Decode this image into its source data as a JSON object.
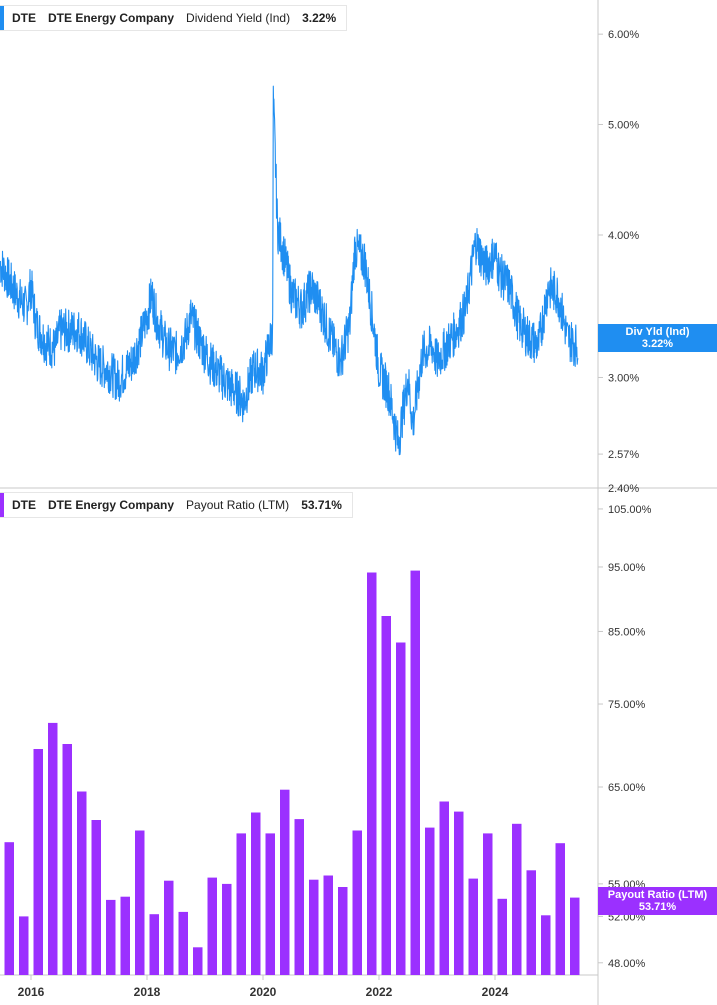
{
  "colors": {
    "yield": "#1f8ef1",
    "payout": "#9b30ff",
    "axis": "#c8c8c8",
    "text": "#333333"
  },
  "top_legend": {
    "ticker": "DTE",
    "company": "DTE Energy Company",
    "metric": "Dividend Yield (Ind)",
    "value": "3.22%"
  },
  "bottom_legend": {
    "ticker": "DTE",
    "company": "DTE Energy Company",
    "metric": "Payout Ratio (LTM)",
    "value": "53.71%"
  },
  "top_flag": {
    "line1": "Div Yld (Ind)",
    "line2": "3.22%"
  },
  "bottom_flag": {
    "line1": "Payout Ratio (LTM)",
    "line2": "53.71%"
  },
  "chart_data": [
    {
      "type": "line",
      "title": "",
      "series": [
        {
          "name": "Dividend Yield (Ind)"
        }
      ],
      "x_range": [
        "2015-06",
        "2025-07"
      ],
      "y_scale": "log",
      "ylim": [
        2.4,
        6.3
      ],
      "y_ticks": [
        "6.00%",
        "5.00%",
        "4.00%",
        "3.00%",
        "2.57%",
        "2.40%"
      ],
      "y_tick_values": [
        6.0,
        5.0,
        4.0,
        3.0,
        2.57,
        2.4
      ],
      "points": [
        [
          "2015-06",
          3.82
        ],
        [
          "2015-08",
          3.68
        ],
        [
          "2015-10",
          3.55
        ],
        [
          "2015-12",
          3.45
        ],
        [
          "2016-01",
          3.62
        ],
        [
          "2016-02",
          3.35
        ],
        [
          "2016-04",
          3.22
        ],
        [
          "2016-06",
          3.18
        ],
        [
          "2016-07",
          3.3
        ],
        [
          "2016-09",
          3.3
        ],
        [
          "2016-11",
          3.3
        ],
        [
          "2017-01",
          3.18
        ],
        [
          "2017-03",
          3.08
        ],
        [
          "2017-05",
          3.05
        ],
        [
          "2017-07",
          2.98
        ],
        [
          "2017-08",
          3.02
        ],
        [
          "2017-10",
          3.1
        ],
        [
          "2017-12",
          3.28
        ],
        [
          "2018-01",
          3.4
        ],
        [
          "2018-02",
          3.55
        ],
        [
          "2018-03",
          3.38
        ],
        [
          "2018-05",
          3.2
        ],
        [
          "2018-07",
          3.15
        ],
        [
          "2018-09",
          3.25
        ],
        [
          "2018-10",
          3.4
        ],
        [
          "2018-12",
          3.22
        ],
        [
          "2019-02",
          3.1
        ],
        [
          "2019-04",
          3.02
        ],
        [
          "2019-06",
          2.95
        ],
        [
          "2019-08",
          2.9
        ],
        [
          "2019-09",
          2.85
        ],
        [
          "2019-11",
          3.05
        ],
        [
          "2019-12",
          3.05
        ],
        [
          "2020-01",
          3.03
        ],
        [
          "2020-03",
          3.3
        ],
        [
          "2020-03",
          5.25
        ],
        [
          "2020-04",
          4.05
        ],
        [
          "2020-05",
          3.9
        ],
        [
          "2020-07",
          3.55
        ],
        [
          "2020-09",
          3.45
        ],
        [
          "2020-11",
          3.6
        ],
        [
          "2021-01",
          3.45
        ],
        [
          "2021-03",
          3.25
        ],
        [
          "2021-05",
          3.1
        ],
        [
          "2021-07",
          3.35
        ],
        [
          "2021-08",
          3.9
        ],
        [
          "2021-10",
          3.8
        ],
        [
          "2021-12",
          3.3
        ],
        [
          "2022-01",
          3.05
        ],
        [
          "2022-03",
          2.92
        ],
        [
          "2022-05",
          2.62
        ],
        [
          "2022-07",
          3.0
        ],
        [
          "2022-08",
          2.72
        ],
        [
          "2022-10",
          3.15
        ],
        [
          "2022-12",
          3.2
        ],
        [
          "2023-01",
          3.1
        ],
        [
          "2023-03",
          3.2
        ],
        [
          "2023-05",
          3.3
        ],
        [
          "2023-07",
          3.45
        ],
        [
          "2023-09",
          3.95
        ],
        [
          "2023-11",
          3.75
        ],
        [
          "2024-01",
          3.85
        ],
        [
          "2024-02",
          3.7
        ],
        [
          "2024-04",
          3.6
        ],
        [
          "2024-06",
          3.35
        ],
        [
          "2024-08",
          3.25
        ],
        [
          "2024-10",
          3.2
        ],
        [
          "2024-12",
          3.6
        ],
        [
          "2025-02",
          3.55
        ],
        [
          "2025-04",
          3.25
        ],
        [
          "2025-06",
          3.2
        ],
        [
          "2025-07",
          3.22
        ]
      ]
    },
    {
      "type": "bar",
      "title": "",
      "series": [
        {
          "name": "Payout Ratio (LTM)"
        }
      ],
      "x_tick_labels": [
        "2016",
        "2018",
        "2020",
        "2022",
        "2024"
      ],
      "y_scale": "log",
      "ylim": [
        47.0,
        107.0
      ],
      "y_ticks": [
        "105.00%",
        "95.00%",
        "85.00%",
        "75.00%",
        "65.00%",
        "55.00%",
        "52.00%",
        "48.00%"
      ],
      "y_tick_values": [
        105,
        95,
        85,
        75,
        65,
        55,
        52,
        48
      ],
      "bars": [
        [
          "2015-Q3",
          59.1
        ],
        [
          "2015-Q4",
          52.0
        ],
        [
          "2016-Q1",
          69.4
        ],
        [
          "2016-Q2",
          72.6
        ],
        [
          "2016-Q3",
          70.0
        ],
        [
          "2016-Q4",
          64.5
        ],
        [
          "2017-Q1",
          61.4
        ],
        [
          "2017-Q2",
          53.5
        ],
        [
          "2017-Q3",
          53.8
        ],
        [
          "2017-Q4",
          60.3
        ],
        [
          "2018-Q1",
          52.2
        ],
        [
          "2018-Q2",
          55.3
        ],
        [
          "2018-Q3",
          52.4
        ],
        [
          "2018-Q4",
          49.3
        ],
        [
          "2019-Q1",
          55.6
        ],
        [
          "2019-Q2",
          55.0
        ],
        [
          "2019-Q3",
          60.0
        ],
        [
          "2019-Q4",
          62.2
        ],
        [
          "2020-Q1",
          60.0
        ],
        [
          "2020-Q2",
          64.7
        ],
        [
          "2020-Q3",
          61.5
        ],
        [
          "2020-Q4",
          55.4
        ],
        [
          "2021-Q1",
          55.8
        ],
        [
          "2021-Q2",
          54.7
        ],
        [
          "2021-Q3",
          60.3
        ],
        [
          "2021-Q4",
          94.1
        ],
        [
          "2022-Q1",
          87.3
        ],
        [
          "2022-Q2",
          83.4
        ],
        [
          "2022-Q3",
          94.4
        ],
        [
          "2022-Q4",
          60.6
        ],
        [
          "2023-Q1",
          63.4
        ],
        [
          "2023-Q2",
          62.3
        ],
        [
          "2023-Q3",
          55.5
        ],
        [
          "2023-Q4",
          60.0
        ],
        [
          "2024-Q1",
          53.6
        ],
        [
          "2024-Q2",
          61.0
        ],
        [
          "2024-Q3",
          56.3
        ],
        [
          "2024-Q4",
          52.1
        ],
        [
          "2025-Q1",
          59.0
        ],
        [
          "2025-Q2",
          53.71
        ]
      ]
    }
  ]
}
